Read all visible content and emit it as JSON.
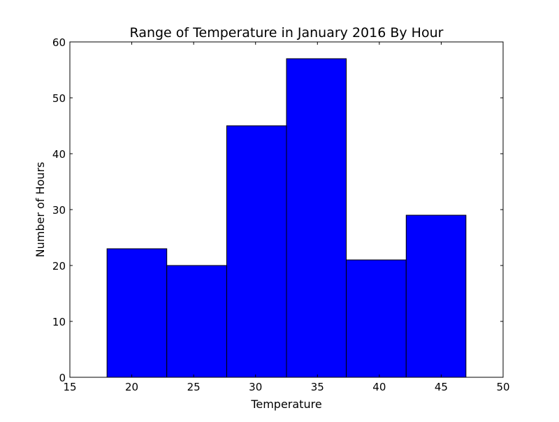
{
  "chart_data": {
    "type": "bar",
    "title": "Range of Temperature in January 2016 By Hour",
    "xlabel": "Temperature",
    "ylabel": "Number of Hours",
    "xlim": [
      15,
      50
    ],
    "ylim": [
      0,
      60
    ],
    "xticks": [
      15,
      20,
      25,
      30,
      35,
      40,
      45,
      50
    ],
    "yticks": [
      0,
      10,
      20,
      30,
      40,
      50,
      60
    ],
    "bins": [
      {
        "x0": 18,
        "x1": 22.83,
        "value": 23
      },
      {
        "x0": 22.83,
        "x1": 27.67,
        "value": 20
      },
      {
        "x0": 27.67,
        "x1": 32.5,
        "value": 45
      },
      {
        "x0": 32.5,
        "x1": 37.33,
        "value": 57
      },
      {
        "x0": 37.33,
        "x1": 42.17,
        "value": 21
      },
      {
        "x0": 42.17,
        "x1": 47,
        "value": 29
      }
    ],
    "grid": false,
    "colors": {
      "bar_fill": "#0000ff",
      "bar_edge": "#000000"
    }
  }
}
